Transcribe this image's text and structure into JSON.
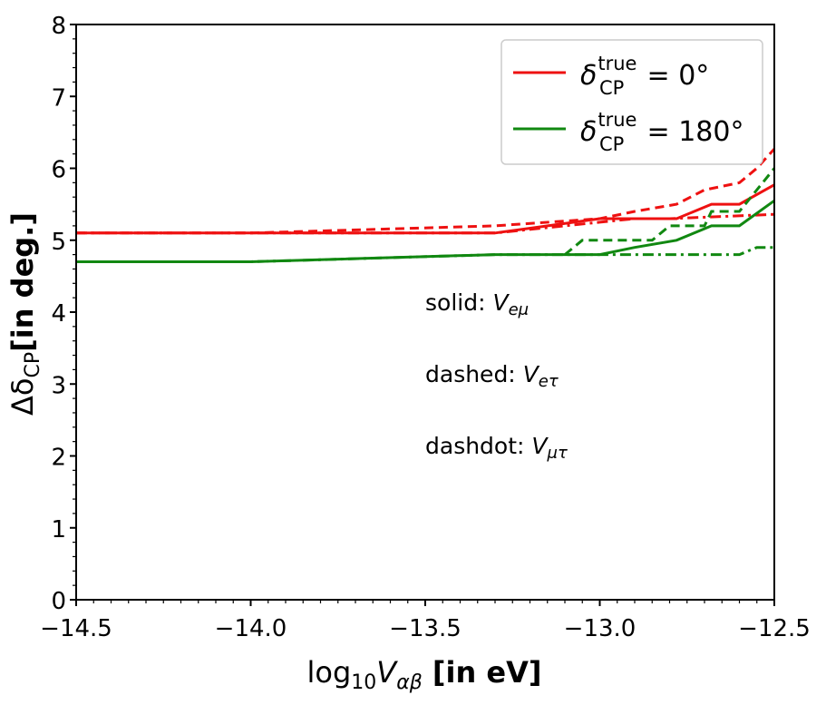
{
  "chart_data": {
    "type": "line",
    "title": "",
    "xlabel": {
      "prefix": "log",
      "prefix_sub": "10",
      "var": "V",
      "var_sub": "αβ",
      "suffix": " [in eV]"
    },
    "ylabel": {
      "prefix": "Δδ",
      "sub": "CP",
      "suffix": "[in deg.]"
    },
    "xlim": [
      -14.5,
      -12.5
    ],
    "ylim": [
      0,
      8
    ],
    "xticks": [
      -14.5,
      -14.0,
      -13.5,
      -13.0,
      -12.5
    ],
    "xtick_labels": [
      "−14.5",
      "−14.0",
      "−13.5",
      "−13.0",
      "−12.5"
    ],
    "yticks": [
      0,
      1,
      2,
      3,
      4,
      5,
      6,
      7,
      8
    ],
    "ytick_labels": [
      "0",
      "1",
      "2",
      "3",
      "4",
      "5",
      "6",
      "7",
      "8"
    ],
    "grid": false,
    "legend_position": "top-right",
    "legend": [
      {
        "symbol": "δ",
        "sub": "CP",
        "sup": "true",
        "value": " = 0°",
        "color": "#ee1111"
      },
      {
        "symbol": "δ",
        "sub": "CP",
        "sup": "true",
        "value": " = 180°",
        "color": "#118811"
      }
    ],
    "annotations": [
      {
        "prefix": "solid: ",
        "var": "V",
        "sub": "eμ"
      },
      {
        "prefix": "dashed: ",
        "var": "V",
        "sub": "eτ"
      },
      {
        "prefix": "dashdot: ",
        "var": "V",
        "sub": "μτ"
      }
    ],
    "series": [
      {
        "group": "δ=0°",
        "style": "solid",
        "color": "#ee1111",
        "x": [
          -14.5,
          -13.3,
          -13.0,
          -12.78,
          -12.68,
          -12.6,
          -12.5
        ],
        "y": [
          5.1,
          5.1,
          5.3,
          5.3,
          5.5,
          5.5,
          5.77
        ]
      },
      {
        "group": "δ=0°",
        "style": "dashed",
        "color": "#ee1111",
        "x": [
          -14.5,
          -14.0,
          -13.3,
          -13.0,
          -12.9,
          -12.78,
          -12.7,
          -12.6,
          -12.55,
          -12.5
        ],
        "y": [
          5.1,
          5.1,
          5.2,
          5.3,
          5.4,
          5.5,
          5.7,
          5.8,
          6.0,
          6.27
        ]
      },
      {
        "group": "δ=0°",
        "style": "dashdot",
        "color": "#ee1111",
        "x": [
          -14.5,
          -13.3,
          -13.0,
          -12.9,
          -12.8,
          -12.5
        ],
        "y": [
          5.1,
          5.1,
          5.25,
          5.3,
          5.3,
          5.36
        ]
      },
      {
        "group": "δ=180°",
        "style": "solid",
        "color": "#118811",
        "x": [
          -14.5,
          -14.0,
          -13.3,
          -13.0,
          -12.9,
          -12.78,
          -12.68,
          -12.6,
          -12.5
        ],
        "y": [
          4.7,
          4.7,
          4.8,
          4.8,
          4.9,
          5.0,
          5.2,
          5.2,
          5.55
        ]
      },
      {
        "group": "δ=180°",
        "style": "dashed",
        "color": "#118811",
        "x": [
          -13.1,
          -13.05,
          -12.85,
          -12.8,
          -12.7,
          -12.68,
          -12.6,
          -12.55,
          -12.5
        ],
        "y": [
          4.8,
          5.0,
          5.0,
          5.2,
          5.2,
          5.4,
          5.4,
          5.7,
          6.0
        ]
      },
      {
        "group": "δ=180°",
        "style": "dashdot",
        "color": "#118811",
        "x": [
          -14.5,
          -14.0,
          -13.3,
          -12.6,
          -12.55,
          -12.5
        ],
        "y": [
          4.7,
          4.7,
          4.8,
          4.8,
          4.9,
          4.9
        ]
      }
    ]
  }
}
